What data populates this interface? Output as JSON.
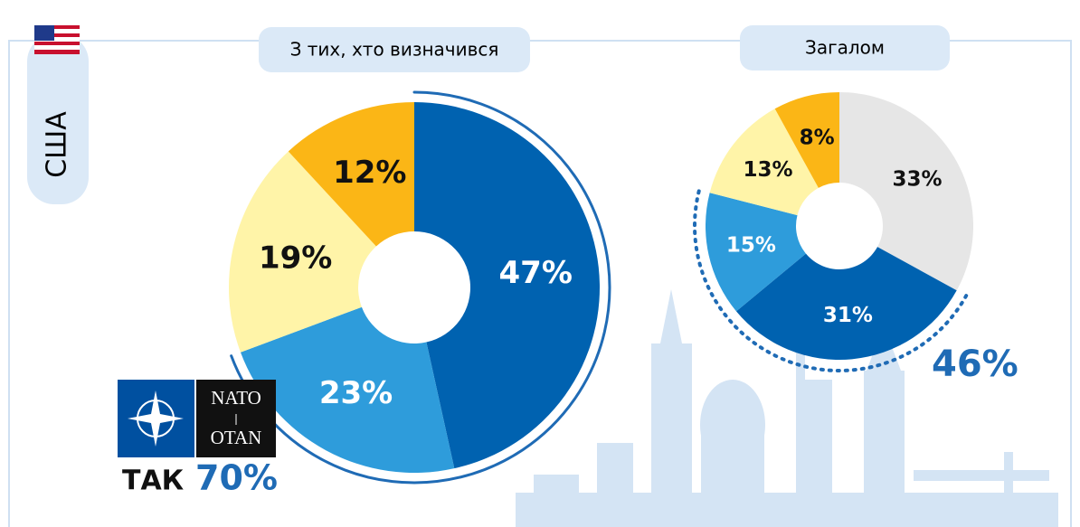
{
  "country": "США",
  "logo": {
    "top": "NATO",
    "bottom": "OTAN"
  },
  "chart_data": [
    {
      "type": "pie",
      "title": "З тих, хто визначився",
      "values": [
        47,
        23,
        19,
        12
      ],
      "value_labels": [
        "47%",
        "23%",
        "19%",
        "12%"
      ],
      "colors": [
        "#0062b0",
        "#2e9cdb",
        "#fff4a8",
        "#fbb616"
      ],
      "annotation": {
        "prefix": "ТАК",
        "value": 70,
        "label": "70%"
      }
    },
    {
      "type": "pie",
      "title": "Загалом",
      "values": [
        33,
        31,
        15,
        13,
        8
      ],
      "value_labels": [
        "33%",
        "31%",
        "15%",
        "13%",
        "8%"
      ],
      "colors": [
        "#e6e6e6",
        "#0062b0",
        "#2e9cdb",
        "#fff4a8",
        "#fbb616"
      ],
      "annotation": {
        "value": 46,
        "label": "46%"
      }
    }
  ]
}
